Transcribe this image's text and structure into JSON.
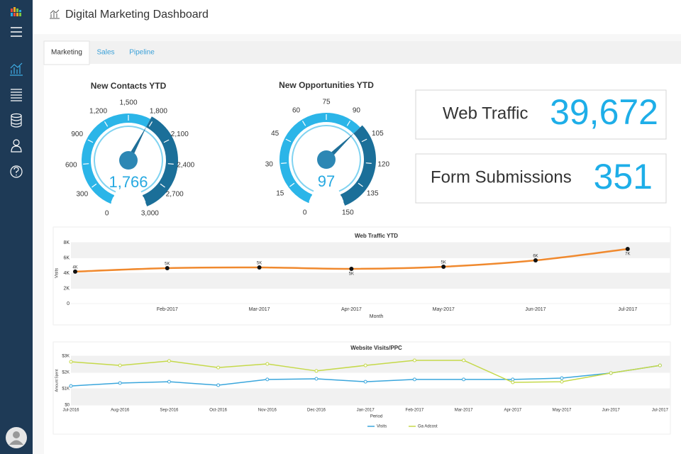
{
  "header": {
    "title": "Digital Marketing Dashboard"
  },
  "tabs": [
    "Marketing",
    "Sales",
    "Pipeline"
  ],
  "gauges": [
    {
      "title": "New Contacts YTD",
      "value": 1766,
      "value_label": "1,766",
      "lim": [
        0,
        3000
      ],
      "ticks": [
        0,
        300,
        600,
        900,
        {
          "value": 1200,
          "label": "1,200"
        },
        {
          "value": 1500,
          "label": "1,500"
        },
        {
          "value": 1800,
          "label": "1,800"
        },
        {
          "value": 2100,
          "label": "2,100"
        },
        {
          "value": 2400,
          "label": "2,400"
        },
        {
          "value": 2700,
          "label": "2,700"
        },
        {
          "value": 3000,
          "label": "3,000"
        }
      ],
      "colors": [
        "#2bb5e8",
        "#1b6f99"
      ]
    },
    {
      "title": "New Opportunities YTD",
      "value": 97,
      "lim": [
        0,
        150
      ],
      "ticks": [
        0,
        15,
        30,
        45,
        60,
        75,
        90,
        105,
        120,
        135,
        150
      ],
      "colors": [
        "#2bb5e8",
        "#1b6f99"
      ]
    }
  ],
  "kpis": [
    {
      "label": "Web Traffic",
      "value": "39,672"
    },
    {
      "label": "Form Submissions",
      "value": "351"
    }
  ],
  "charts": [
    {
      "type": "line",
      "title": "Web Traffic YTD",
      "x_label": "Month",
      "y_label": "Visits",
      "categories": [
        null,
        "Feb-2017",
        "Mar-2017",
        "Apr-2017",
        "May-2017",
        "Jun-2017",
        "Jul-2017"
      ],
      "values": [
        4200,
        4650,
        4740,
        4560,
        4840,
        5670,
        7160
      ],
      "value_labels": [
        "4K",
        "5K",
        "5K",
        "5K",
        "5K",
        "6K",
        "7K"
      ],
      "color": "#f0892e",
      "ylim": [
        0,
        8000
      ],
      "yticks": [
        0,
        {
          "value": 2000,
          "label": "2K"
        },
        {
          "value": 4000,
          "label": "4K"
        },
        {
          "value": 6000,
          "label": "6K"
        },
        {
          "value": 8000,
          "label": "8K"
        }
      ]
    },
    {
      "type": "line",
      "title": "Website Visits/PPC",
      "x_label": "Period",
      "y_label": "Amount Spent",
      "categories": [
        "Jul-2016",
        "Aug-2016",
        "Sep-2016",
        "Oct-2016",
        "Nov-2016",
        "Dec-2016",
        "Jan-2017",
        "Feb-2017",
        "Mar-2017",
        "Apr-2017",
        "May-2017",
        "Jun-2017",
        "Jul-2017"
      ],
      "series": [
        {
          "name": "Visits",
          "color": "#3aa6dc",
          "values": [
            1170,
            1350,
            1430,
            1220,
            1570,
            1610,
            1430,
            1570,
            1570,
            1570,
            1650,
            1960,
            2430
          ]
        },
        {
          "name": "Ga Adcost",
          "color": "#c5d94a",
          "values": [
            2650,
            2430,
            2700,
            2300,
            2520,
            2090,
            2430,
            2740,
            2740,
            1390,
            1430,
            1960,
            2430
          ]
        }
      ],
      "ylim": [
        0,
        3000
      ],
      "yticks": [
        {
          "value": 0,
          "label": "$0"
        },
        {
          "value": 1000,
          "label": "$1K"
        },
        {
          "value": 2000,
          "label": "$2K"
        },
        {
          "value": 3000,
          "label": "$3K"
        }
      ]
    }
  ]
}
